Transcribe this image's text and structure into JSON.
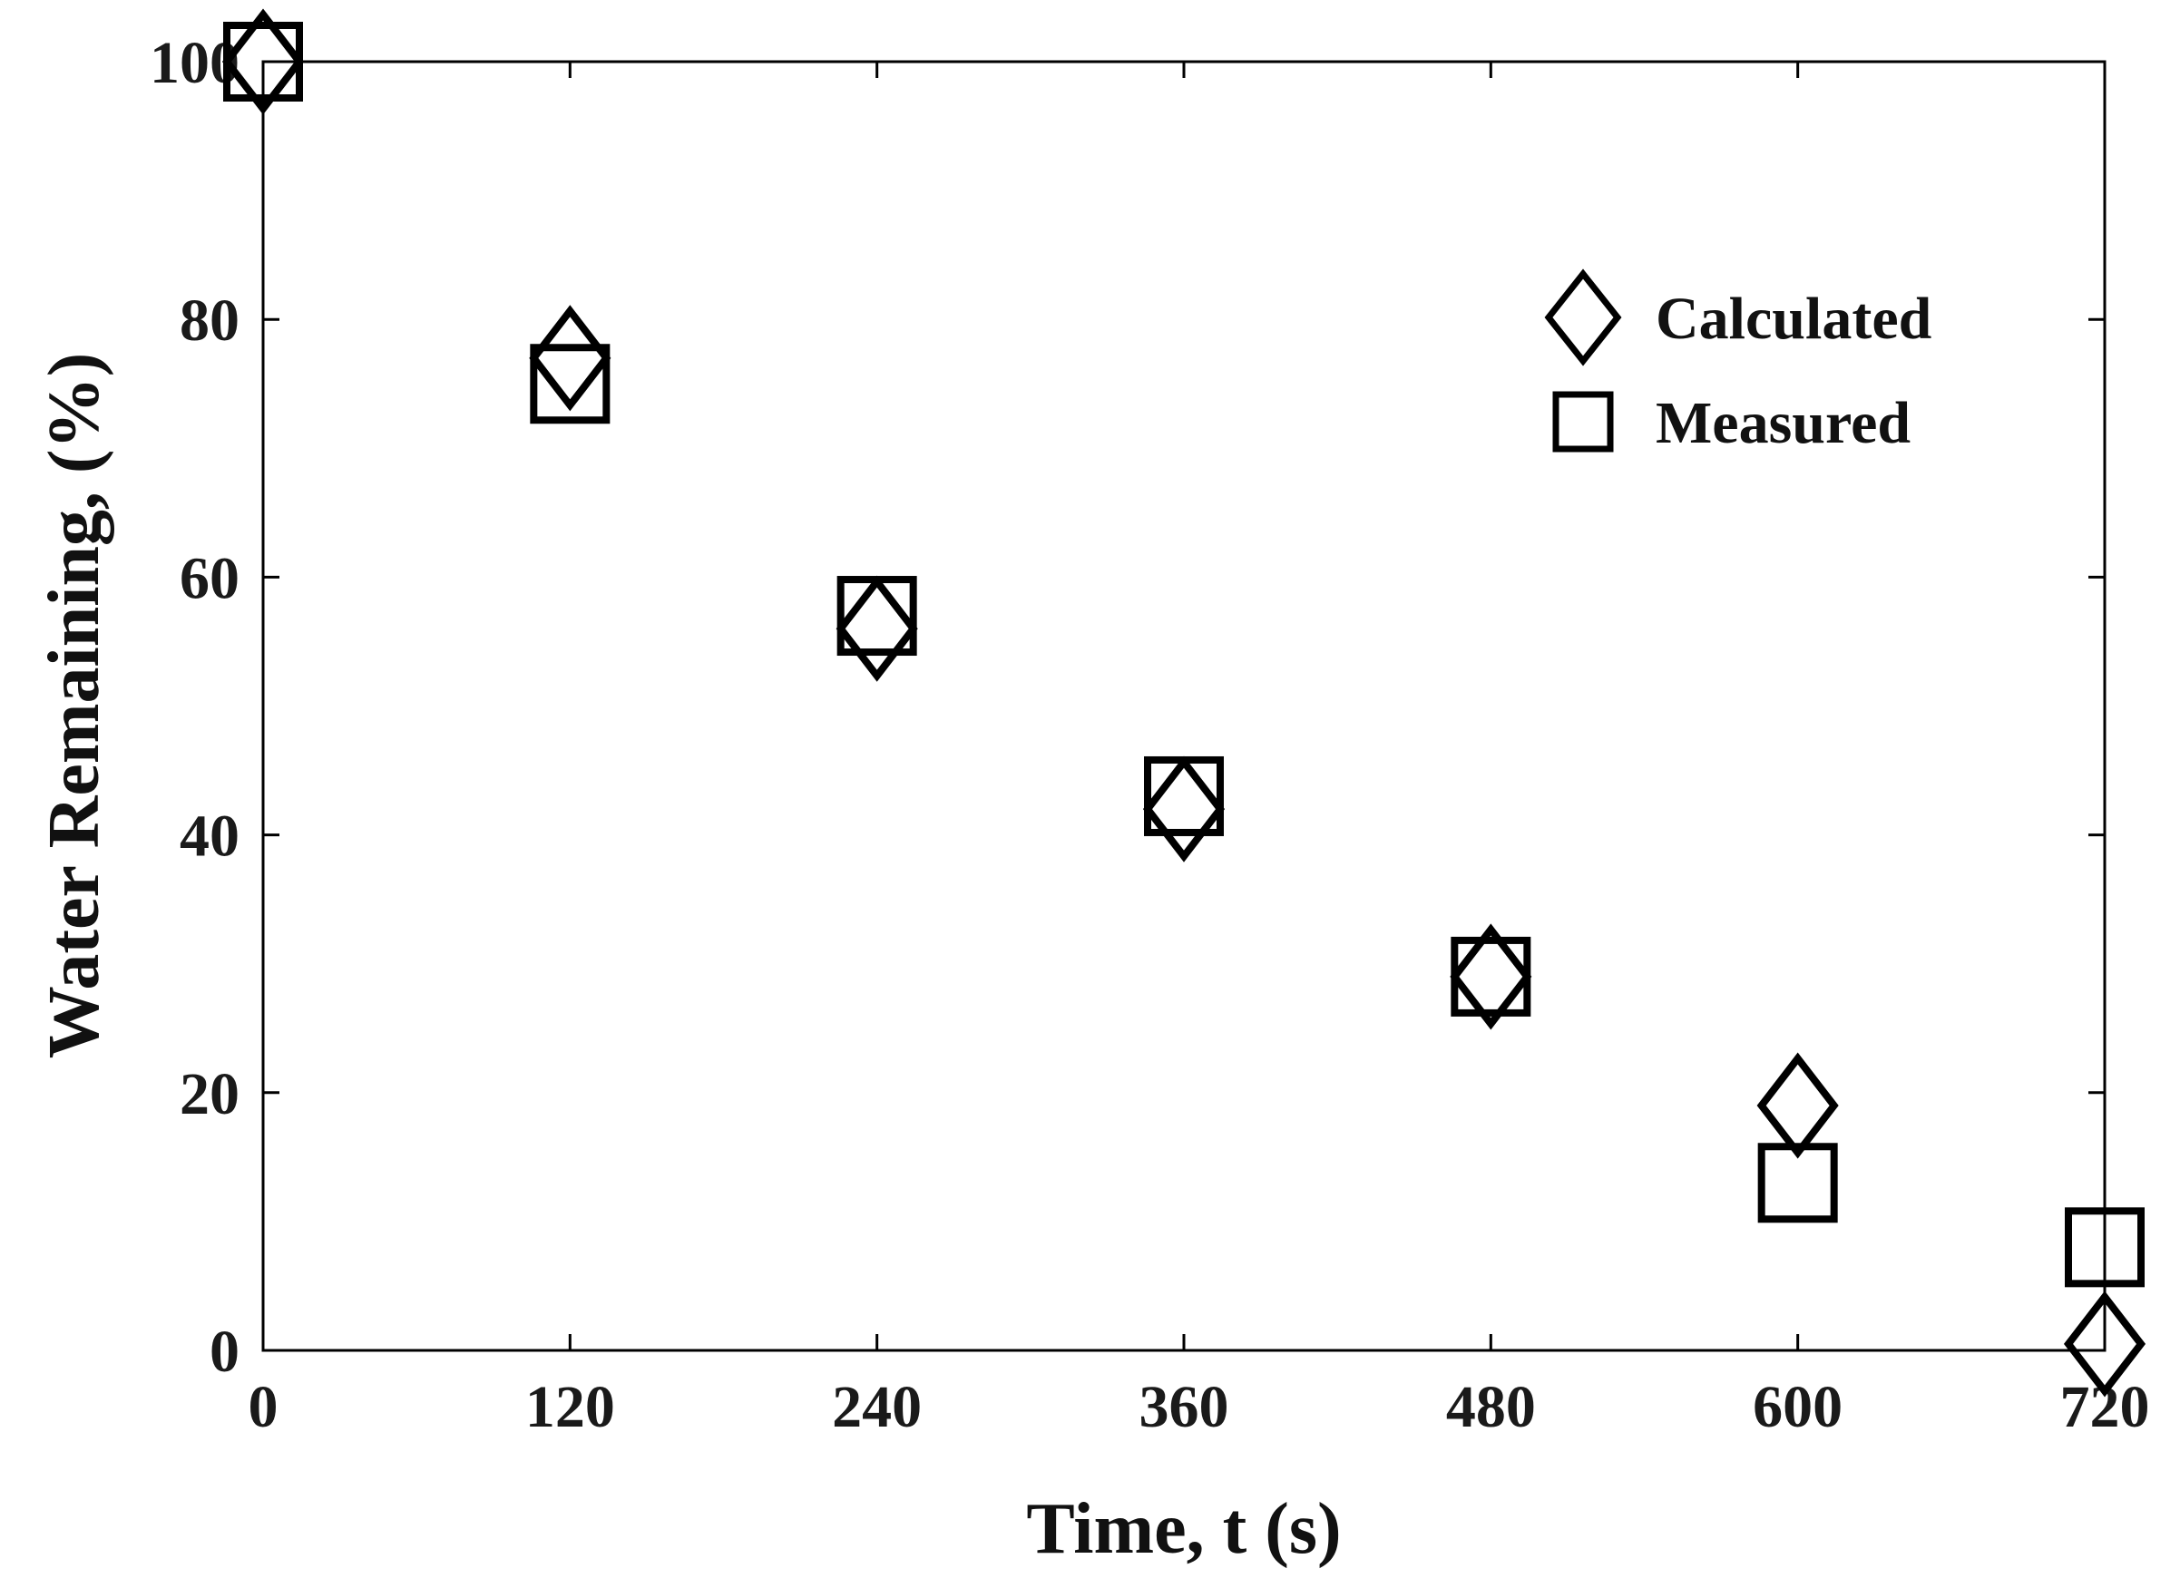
{
  "chart_data": {
    "type": "scatter",
    "title": "",
    "xlabel": "Time, t (s)",
    "ylabel": "Water Remaining, (%)",
    "xlim": [
      0,
      720
    ],
    "ylim": [
      0,
      100
    ],
    "xticks": [
      0,
      120,
      240,
      360,
      480,
      600,
      720
    ],
    "yticks": [
      0,
      20,
      40,
      60,
      80,
      100
    ],
    "grid": false,
    "legend_position": "top-right",
    "series": [
      {
        "name": "Calculated",
        "marker": "diamond",
        "color": "#000000",
        "x": [
          0,
          120,
          240,
          360,
          480,
          600,
          720
        ],
        "y": [
          100,
          77,
          56,
          42,
          29,
          19,
          0.5
        ]
      },
      {
        "name": "Measured",
        "marker": "square",
        "color": "#000000",
        "x": [
          0,
          120,
          240,
          360,
          480,
          600,
          720
        ],
        "y": [
          100,
          75,
          57,
          43,
          29,
          13,
          8
        ]
      }
    ]
  }
}
